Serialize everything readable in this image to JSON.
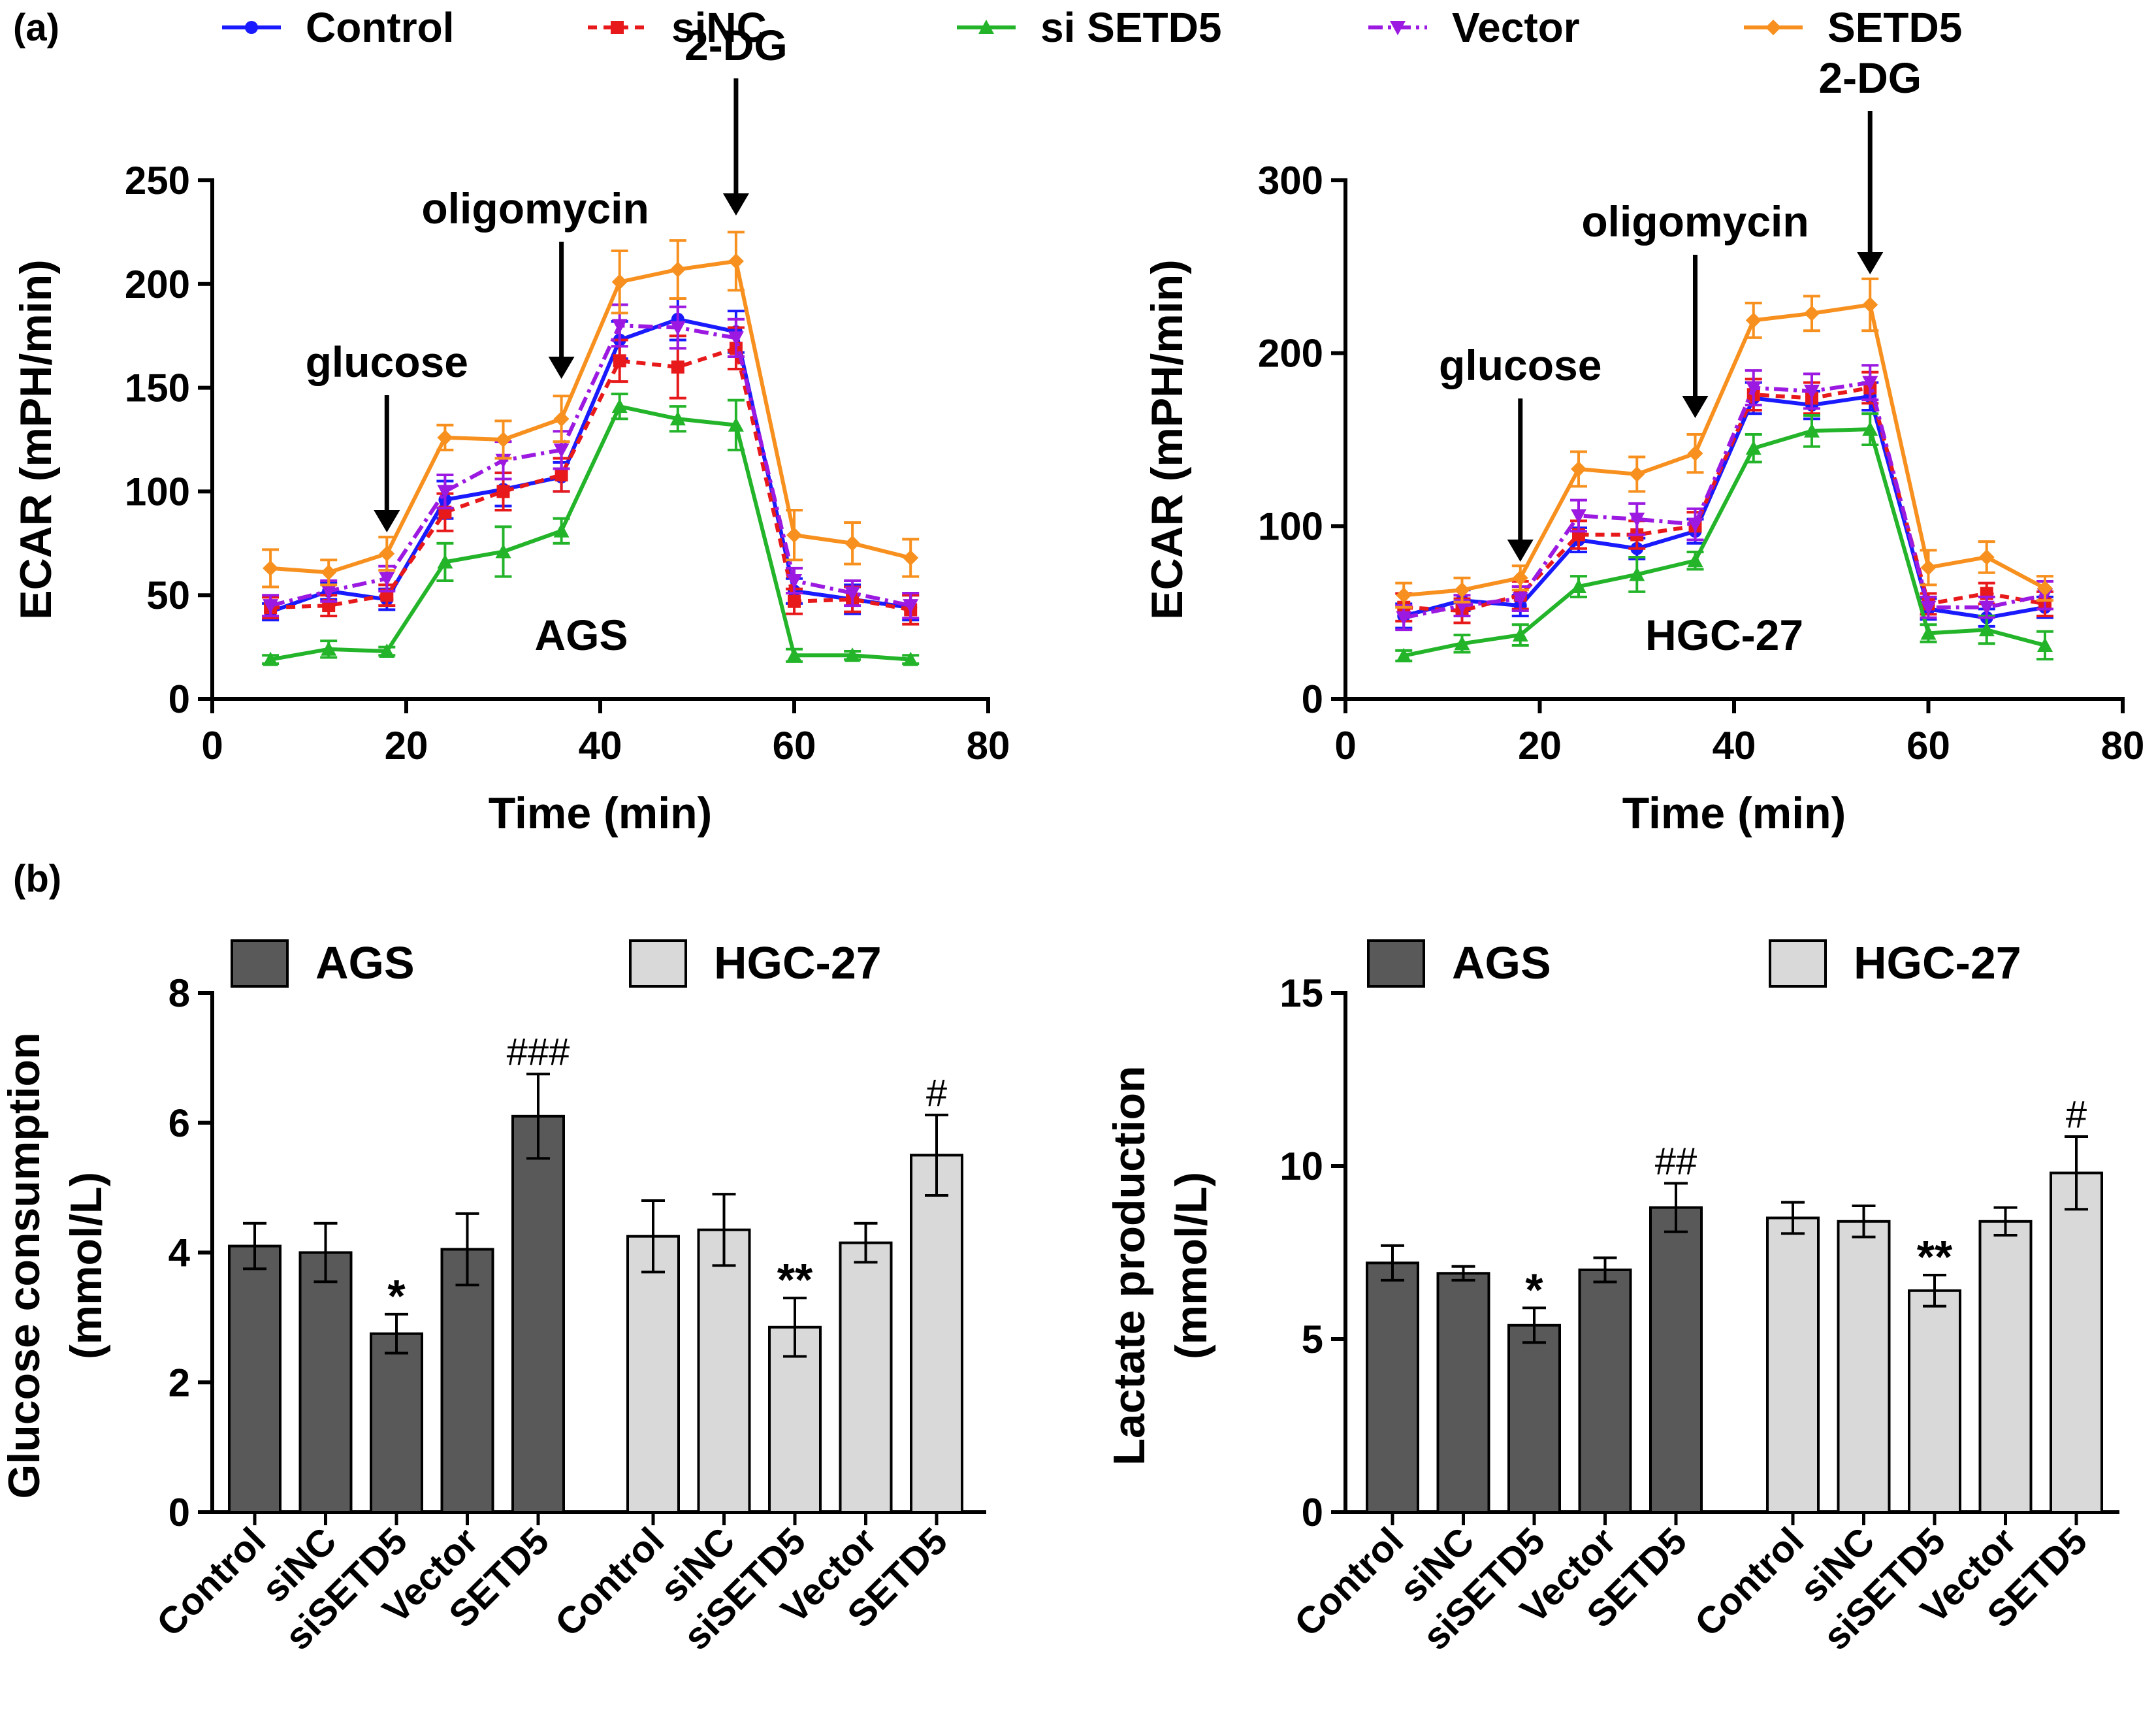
{
  "panel_labels": {
    "a": "(a)",
    "b": "(b)"
  },
  "colors": {
    "Control": "#1a1aff",
    "siNC": "#e8191b",
    "si SETD5": "#23b42a",
    "Vector": "#9b19e0",
    "SETD5": "#f7901e",
    "AGS_bar": "#595959",
    "HGC_bar": "#d9d9d9"
  },
  "legend_top": [
    "Control",
    "siNC",
    "si SETD5",
    "Vector",
    "SETD5"
  ],
  "chart_data": [
    {
      "type": "line",
      "id": "ecar-ags",
      "label": "AGS",
      "title": "",
      "xlabel": "Time (min)",
      "ylabel": "ECAR (mPH/min)",
      "xlim": [
        0,
        80
      ],
      "ylim": [
        0,
        250
      ],
      "xticks": [
        0,
        20,
        40,
        60,
        80
      ],
      "yticks": [
        0,
        50,
        100,
        150,
        200,
        250
      ],
      "x": [
        6,
        12,
        18,
        24,
        30,
        36,
        42,
        48,
        54,
        60,
        66,
        72
      ],
      "annotations": [
        {
          "text": "glucose",
          "x": 18
        },
        {
          "text": "oligomycin",
          "x": 36
        },
        {
          "text": "2-DG",
          "x": 54
        }
      ],
      "series": [
        {
          "name": "Control",
          "values": [
            42,
            52,
            48,
            96,
            101,
            107,
            173,
            183,
            177,
            52,
            48,
            44
          ],
          "errors": [
            4,
            4,
            5,
            9,
            8,
            7,
            9,
            10,
            10,
            6,
            7,
            6
          ]
        },
        {
          "name": "siNC",
          "values": [
            44,
            45,
            50,
            90,
            100,
            108,
            163,
            160,
            169,
            47,
            48,
            43
          ],
          "errors": [
            5,
            5,
            5,
            9,
            9,
            8,
            10,
            15,
            10,
            6,
            6,
            7
          ]
        },
        {
          "name": "si SETD5",
          "values": [
            19,
            24,
            23,
            66,
            71,
            81,
            141,
            135,
            132,
            21,
            21,
            19
          ],
          "errors": [
            2,
            4,
            2,
            9,
            12,
            6,
            6,
            6,
            12,
            3,
            2,
            2
          ]
        },
        {
          "name": "Vector",
          "values": [
            45,
            52,
            58,
            100,
            115,
            120,
            180,
            179,
            174,
            57,
            51,
            45
          ],
          "errors": [
            5,
            5,
            6,
            8,
            9,
            9,
            10,
            10,
            9,
            6,
            6,
            6
          ]
        },
        {
          "name": "SETD5",
          "values": [
            63,
            61,
            70,
            126,
            125,
            135,
            201,
            207,
            211,
            79,
            75,
            68
          ],
          "errors": [
            9,
            6,
            8,
            6,
            9,
            11,
            15,
            14,
            14,
            12,
            10,
            9
          ]
        }
      ]
    },
    {
      "type": "line",
      "id": "ecar-hgc",
      "label": "HGC-27",
      "title": "",
      "xlabel": "Time (min)",
      "ylabel": "ECAR (mPH/min)",
      "xlim": [
        0,
        80
      ],
      "ylim": [
        0,
        300
      ],
      "xticks": [
        0,
        20,
        40,
        60,
        80
      ],
      "yticks": [
        0,
        100,
        200,
        300
      ],
      "x": [
        6,
        12,
        18,
        24,
        30,
        36,
        42,
        48,
        54,
        60,
        66,
        72
      ],
      "annotations": [
        {
          "text": "glucose",
          "x": 18
        },
        {
          "text": "oligomycin",
          "x": 36
        },
        {
          "text": "2-DG",
          "x": 54
        }
      ],
      "series": [
        {
          "name": "Control",
          "values": [
            48,
            57,
            54,
            92,
            87,
            97,
            174,
            170,
            175,
            52,
            47,
            53
          ],
          "errors": [
            7,
            6,
            6,
            7,
            6,
            7,
            9,
            8,
            8,
            6,
            5,
            6
          ]
        },
        {
          "name": "siNC",
          "values": [
            53,
            51,
            60,
            95,
            95,
            100,
            176,
            174,
            180,
            55,
            61,
            55
          ],
          "errors": [
            8,
            7,
            8,
            8,
            8,
            8,
            9,
            9,
            9,
            6,
            6,
            7
          ]
        },
        {
          "name": "si SETD5",
          "values": [
            25,
            32,
            37,
            65,
            72,
            80,
            145,
            155,
            156,
            38,
            40,
            31
          ],
          "errors": [
            3,
            5,
            6,
            6,
            10,
            5,
            8,
            9,
            9,
            5,
            8,
            8
          ]
        },
        {
          "name": "Vector",
          "values": [
            47,
            54,
            58,
            106,
            104,
            101,
            180,
            178,
            183,
            53,
            53,
            60
          ],
          "errors": [
            7,
            6,
            7,
            9,
            9,
            9,
            10,
            10,
            10,
            6,
            6,
            8
          ]
        },
        {
          "name": "SETD5",
          "values": [
            60,
            63,
            70,
            133,
            130,
            142,
            219,
            223,
            228,
            76,
            82,
            64
          ],
          "errors": [
            7,
            7,
            7,
            10,
            10,
            11,
            10,
            10,
            15,
            10,
            9,
            7
          ]
        }
      ]
    },
    {
      "type": "bar",
      "id": "glucose",
      "title": "",
      "ylabel_line1": "Glucose consumption",
      "ylabel_line2": "(mmol/L)",
      "ylim": [
        0,
        8
      ],
      "yticks": [
        0,
        2,
        4,
        6,
        8
      ],
      "legend": [
        "AGS",
        "HGC-27"
      ],
      "categories": [
        "Control",
        "siNC",
        "siSETD5",
        "Vector",
        "SETD5"
      ],
      "series": [
        {
          "name": "AGS",
          "values": [
            4.1,
            4.0,
            2.75,
            4.05,
            6.1
          ],
          "errors": [
            0.35,
            0.45,
            0.3,
            0.55,
            0.65
          ],
          "sig": [
            "",
            "",
            "*",
            "",
            "###"
          ]
        },
        {
          "name": "HGC-27",
          "values": [
            4.25,
            4.35,
            2.85,
            4.15,
            5.5
          ],
          "errors": [
            0.55,
            0.55,
            0.45,
            0.3,
            0.62
          ],
          "sig": [
            "",
            "",
            "**",
            "",
            "#"
          ]
        }
      ]
    },
    {
      "type": "bar",
      "id": "lactate",
      "title": "",
      "ylabel_line1": "Lactate production",
      "ylabel_line2": "(mmol/L)",
      "ylim": [
        0,
        15
      ],
      "yticks": [
        0,
        5,
        10,
        15
      ],
      "legend": [
        "AGS",
        "HGC-27"
      ],
      "categories": [
        "Control",
        "siNC",
        "siSETD5",
        "Vector",
        "SETD5"
      ],
      "series": [
        {
          "name": "AGS",
          "values": [
            7.2,
            6.9,
            5.4,
            7.0,
            8.8
          ],
          "errors": [
            0.5,
            0.2,
            0.5,
            0.35,
            0.7
          ],
          "sig": [
            "",
            "",
            "*",
            "",
            "##"
          ]
        },
        {
          "name": "HGC-27",
          "values": [
            8.5,
            8.4,
            6.4,
            8.4,
            9.8
          ],
          "errors": [
            0.45,
            0.45,
            0.45,
            0.4,
            1.05
          ],
          "sig": [
            "",
            "",
            "**",
            "",
            "#"
          ]
        }
      ]
    }
  ]
}
